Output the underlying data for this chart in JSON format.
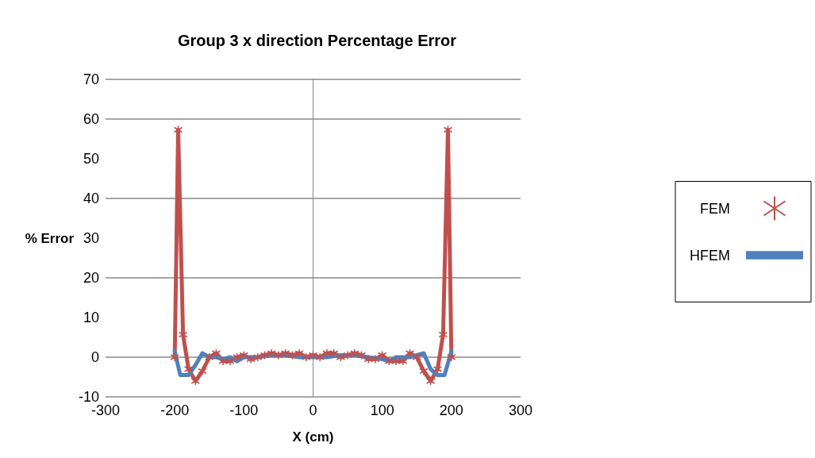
{
  "chart_data": {
    "type": "line",
    "title": "Group 3 x direction Percentage Error",
    "xlabel": "X (cm)",
    "ylabel": "% Error",
    "xlim": [
      -300,
      300
    ],
    "xticks": [
      -300,
      -200,
      -100,
      0,
      100,
      200,
      300
    ],
    "ylim": [
      -10,
      70
    ],
    "yticks": [
      -10,
      0,
      10,
      20,
      30,
      40,
      50,
      60,
      70
    ],
    "grid": "y",
    "legend": "right",
    "line_style": "solid",
    "series": [
      {
        "name": "FEM",
        "color": "#c0504d",
        "marker": "cross",
        "x": [
          -200,
          -195,
          -188,
          -180,
          -170,
          -160,
          -150,
          -140,
          -130,
          -120,
          -110,
          -100,
          -90,
          -80,
          -70,
          -60,
          -50,
          -40,
          -30,
          -20,
          -10,
          0,
          10,
          20,
          30,
          40,
          50,
          60,
          70,
          80,
          90,
          100,
          110,
          120,
          130,
          140,
          150,
          160,
          170,
          180,
          188,
          195,
          200
        ],
        "values": [
          0,
          57.3,
          5.7,
          -3,
          -6,
          -3.5,
          0,
          1,
          -1,
          -1,
          0,
          0.5,
          -0.5,
          0,
          0.5,
          1,
          0.5,
          1,
          0.5,
          1,
          0,
          0.5,
          0,
          1,
          1,
          0,
          0.5,
          1,
          0.5,
          -0.5,
          -0.5,
          0.5,
          -1,
          -1,
          -1,
          1,
          0,
          -3.5,
          -6,
          -3,
          5.7,
          57.3,
          0
        ]
      },
      {
        "name": "HFEM",
        "color": "#4f81bd",
        "marker": "none",
        "x": [
          -200,
          -192,
          -180,
          -170,
          -160,
          -150,
          -140,
          -130,
          -120,
          -110,
          -100,
          -80,
          -60,
          -40,
          -20,
          0,
          20,
          40,
          60,
          80,
          100,
          110,
          120,
          130,
          140,
          150,
          160,
          170,
          180,
          190,
          200
        ],
        "values": [
          1.5,
          -4.5,
          -4.5,
          -2,
          1,
          0,
          0,
          -0.5,
          0,
          -1,
          0,
          0,
          0.5,
          0.5,
          0,
          0,
          0,
          0.5,
          0.5,
          0,
          -0.5,
          -1,
          0,
          0,
          0,
          0.5,
          1,
          -3,
          -4.5,
          -4.5,
          1.5
        ]
      }
    ]
  }
}
